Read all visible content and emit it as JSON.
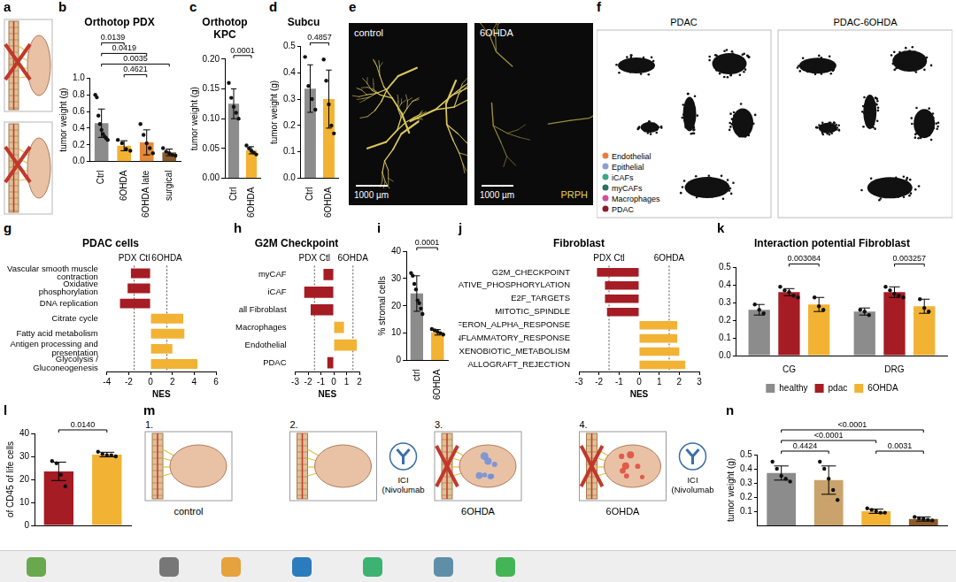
{
  "chart_data": [
    {
      "panel": "b",
      "type": "bar",
      "title": "Orthotop PDX",
      "y_label": "tumor weight (g)",
      "categories": [
        "Ctrl",
        "6OHDA",
        "6OHDA late",
        "surgical"
      ],
      "values": [
        0.46,
        0.19,
        0.23,
        0.11
      ],
      "errors": [
        0.17,
        0.06,
        0.15,
        0.04
      ],
      "points": [
        [
          0.8,
          0.77,
          0.55,
          0.45,
          0.38,
          0.33,
          0.3,
          0.28,
          0.26
        ],
        [
          0.26,
          0.22,
          0.15,
          0.13
        ],
        [
          0.45,
          0.32,
          0.22,
          0.16,
          0.1
        ],
        [
          0.16,
          0.12,
          0.1,
          0.08,
          0.07
        ]
      ],
      "colors": [
        "#8c8c8c",
        "#f2b233",
        "#e58a3a",
        "#8b5a2b"
      ],
      "ylim": [
        0,
        1
      ],
      "yticks": [
        {
          "value": 0,
          "label": "0.0"
        },
        0.2,
        0.4,
        0.6,
        0.8,
        {
          "value": 1,
          "label": "1.0"
        }
      ],
      "grid": false,
      "annotations": [
        {
          "text": "0.4621",
          "between": [
            "6OHDA",
            "6OHDA late"
          ]
        },
        {
          "text": "0.0035",
          "between": [
            "Ctrl",
            "surgical"
          ]
        },
        {
          "text": "0.0419",
          "between": [
            "Ctrl",
            "6OHDA late"
          ]
        },
        {
          "text": "0.0139",
          "between": [
            "Ctrl",
            "6OHDA"
          ]
        }
      ]
    },
    {
      "panel": "c",
      "type": "bar",
      "title": "Orthotop KPC",
      "y_label": "tumor weight (g)",
      "categories": [
        "Ctrl",
        "6OHDA"
      ],
      "values": [
        0.125,
        0.047
      ],
      "errors": [
        0.025,
        0.006
      ],
      "points": [
        [
          0.16,
          0.135,
          0.12,
          0.11,
          0.1
        ],
        [
          0.055,
          0.05,
          0.046,
          0.043,
          0.04
        ]
      ],
      "colors": [
        "#8c8c8c",
        "#f2b233"
      ],
      "ylim": [
        0,
        0.2
      ],
      "yticks": [
        {
          "value": 0,
          "label": "0.00"
        },
        0.05,
        {
          "value": 0.1,
          "label": "0.10"
        },
        0.15,
        {
          "value": 0.2,
          "label": "0.20"
        }
      ],
      "grid": false,
      "annotations": [
        {
          "text": "0.0001",
          "between": [
            "Ctrl",
            "6OHDA"
          ]
        }
      ]
    },
    {
      "panel": "d",
      "type": "bar",
      "title": "Subcu",
      "y_label": "tumor weight (g)",
      "categories": [
        "Ctrl",
        "6OHDA"
      ],
      "values": [
        0.34,
        0.3
      ],
      "errors": [
        0.09,
        0.11
      ],
      "points": [
        [
          0.46,
          0.35,
          0.3,
          0.26
        ],
        [
          0.45,
          0.37,
          0.28,
          0.2,
          0.17
        ]
      ],
      "colors": [
        "#8c8c8c",
        "#f2b233"
      ],
      "ylim": [
        0,
        0.5
      ],
      "yticks": [
        {
          "value": 0,
          "label": "0.0"
        },
        0.1,
        0.2,
        0.3,
        0.4,
        0.5
      ],
      "grid": false,
      "annotations": [
        {
          "text": "0.4857",
          "between": [
            "Ctrl",
            "6OHDA"
          ]
        }
      ]
    },
    {
      "panel": "g",
      "type": "bar",
      "orientation": "horizontal",
      "title": "PDAC cells",
      "x_label": "NES",
      "side_labels": [
        "PDX Ctl",
        "6OHDA"
      ],
      "ref_lines": [
        -1.5,
        1.5
      ],
      "categories": [
        "Vascular smooth muscle contraction",
        "Oxidative phosphorylation",
        "DNA replication",
        "Citrate cycle",
        "Fatty acid metabolism",
        "Antigen processing and presentation",
        "Glycolysis / Gluconeogenesis"
      ],
      "values": [
        -1.8,
        -2.1,
        -2.8,
        3.0,
        3.1,
        2.0,
        4.3
      ],
      "colors": [
        "#a51c24",
        "#a51c24",
        "#a51c24",
        "#f2b233",
        "#f2b233",
        "#f2b233",
        "#f2b233"
      ],
      "xlim": [
        -4,
        6
      ],
      "xticks": [
        -4,
        -2,
        0,
        2,
        4,
        6
      ],
      "grid": false
    },
    {
      "panel": "h",
      "type": "bar",
      "orientation": "horizontal",
      "title": "G2M Checkpoint",
      "x_label": "NES",
      "side_labels": [
        "PDX Ctl",
        "6OHDA"
      ],
      "ref_lines": [
        -1.5,
        1.5
      ],
      "categories": [
        "myCAF",
        "iCAF",
        "all Fibroblast",
        "Macrophages",
        "Endothelial",
        "PDAC"
      ],
      "values": [
        -0.8,
        -2.3,
        -1.8,
        0.8,
        1.8,
        -0.5
      ],
      "colors": [
        "#a51c24",
        "#a51c24",
        "#a51c24",
        "#f2b233",
        "#f2b233",
        "#a51c24"
      ],
      "xlim": [
        -3,
        2
      ],
      "xticks": [
        -3,
        -2,
        -1,
        0,
        1,
        2
      ],
      "grid": false
    },
    {
      "panel": "i",
      "type": "bar",
      "y_label": "% stromal cells",
      "categories": [
        "ctrl",
        "6OHDA"
      ],
      "values": [
        24.5,
        10.3
      ],
      "errors": [
        6.5,
        1.0
      ],
      "points": [
        [
          32,
          31,
          28,
          26,
          22,
          21,
          19,
          17
        ],
        [
          11.5,
          11,
          10.5,
          10,
          9.5
        ]
      ],
      "colors": [
        "#8c8c8c",
        "#f2b233"
      ],
      "ylim": [
        0,
        40
      ],
      "yticks": [
        0,
        10,
        20,
        30,
        40
      ],
      "grid": false,
      "annotations": [
        {
          "text": "0.0001",
          "between": [
            "ctrl",
            "6OHDA"
          ]
        }
      ]
    },
    {
      "panel": "j",
      "type": "bar",
      "orientation": "horizontal",
      "title": "Fibroblast",
      "x_label": "NES",
      "side_labels": [
        "PDX Ctl",
        "6OHDA"
      ],
      "ref_lines": [
        -1.5,
        1.5
      ],
      "categories": [
        "G2M_CHECKPOINT",
        "OXIDATIVE_PHOSPHORYLATION",
        "E2F_TARGETS",
        "MITOTIC_SPINDLE",
        "INTERFERON_ALPHA_RESPONSE",
        "INFLAMMATORY_RESPONSE",
        "XENOBIOTIC_METABOLISM",
        "ALLOGRAFT_REJECTION"
      ],
      "values": [
        -2.1,
        -1.7,
        -1.7,
        -1.6,
        1.9,
        1.9,
        2.0,
        2.3
      ],
      "colors": [
        "#a51c24",
        "#a51c24",
        "#a51c24",
        "#a51c24",
        "#f2b233",
        "#f2b233",
        "#f2b233",
        "#f2b233"
      ],
      "xlim": [
        -3,
        3
      ],
      "xticks": [
        -3,
        -2,
        -1,
        0,
        1,
        2,
        3
      ],
      "grid": false
    },
    {
      "panel": "k",
      "type": "bar",
      "title": "Interaction potential Fibroblast",
      "categories": [
        "CG",
        "DRG"
      ],
      "series": [
        {
          "name": "healthy",
          "color": "#8c8c8c",
          "values": [
            0.26,
            0.25
          ],
          "errors": [
            0.03,
            0.02
          ],
          "points": [
            [
              0.29,
              0.26,
              0.24
            ],
            [
              0.26,
              0.25,
              0.23
            ]
          ]
        },
        {
          "name": "pdac",
          "color": "#a51c24",
          "values": [
            0.36,
            0.36
          ],
          "errors": [
            0.02,
            0.03
          ],
          "points": [
            [
              0.39,
              0.37,
              0.36,
              0.34,
              0.33
            ],
            [
              0.39,
              0.37,
              0.35,
              0.34,
              0.33
            ]
          ]
        },
        {
          "name": "6OHDA",
          "color": "#f2b233",
          "values": [
            0.29,
            0.28
          ],
          "errors": [
            0.04,
            0.04
          ],
          "points": [
            [
              0.33,
              0.28,
              0.26
            ],
            [
              0.32,
              0.27,
              0.25
            ]
          ]
        }
      ],
      "ylim": [
        0,
        0.5
      ],
      "yticks": [
        {
          "value": 0,
          "label": "0.0"
        },
        0.1,
        0.2,
        0.3,
        0.4,
        0.5
      ],
      "grid": false,
      "legend": "bottom",
      "annotations": [
        {
          "text": "0.003084",
          "category": "CG",
          "between": [
            "pdac",
            "6OHDA"
          ]
        },
        {
          "text": "0.003257",
          "category": "DRG",
          "between": [
            "pdac",
            "6OHDA"
          ]
        }
      ]
    },
    {
      "panel": "l",
      "type": "bar",
      "y_label": "of CD45 of life cells",
      "categories": [
        null,
        null
      ],
      "values": [
        23.5,
        30.8
      ],
      "errors": [
        4,
        1
      ],
      "points": [
        [
          28,
          27,
          22,
          17
        ],
        [
          32,
          31,
          30.5,
          30.5,
          30
        ]
      ],
      "colors": [
        "#a51c24",
        "#f2b233"
      ],
      "ylim": [
        0,
        40
      ],
      "yticks": [
        0,
        10,
        20,
        30,
        40
      ],
      "grid": false,
      "annotations": [
        {
          "text": "0.0140",
          "between": [
            0,
            1
          ]
        }
      ]
    },
    {
      "panel": "n",
      "type": "bar",
      "y_label": "tumor weight (g)",
      "categories": [
        null,
        null,
        null,
        null
      ],
      "values": [
        0.37,
        0.32,
        0.1,
        0.045
      ],
      "errors": [
        0.05,
        0.1,
        0.015,
        0.015
      ],
      "points": [
        [
          0.45,
          0.4,
          0.35,
          0.33,
          0.31
        ],
        [
          0.45,
          0.4,
          0.33,
          0.25,
          0.18
        ],
        [
          0.12,
          0.11,
          0.1,
          0.09,
          0.09
        ],
        [
          0.06,
          0.05,
          0.045,
          0.04,
          0.035
        ]
      ],
      "colors": [
        "#8c8c8c",
        "#c9a36b",
        "#f2b233",
        "#8b5a2b"
      ],
      "ylim": [
        0,
        0.5
      ],
      "yticks": [
        0.1,
        0.2,
        0.3,
        0.4,
        0.5
      ],
      "grid": false,
      "annotations": [
        {
          "text": "0.0031",
          "between": [
            2,
            3
          ]
        },
        {
          "text": "0.4424",
          "between": [
            0,
            1
          ]
        },
        {
          "text": "<0.0001",
          "between": [
            0,
            2
          ]
        },
        {
          "text": "<0.0001",
          "between": [
            0,
            3
          ]
        }
      ]
    }
  ],
  "illustrations": [
    {
      "panel": "a"
    },
    {
      "panel": "e",
      "images": [
        {
          "label": "control",
          "scale_bar": "1000 µm"
        },
        {
          "label": "6OHDA",
          "scale_bar": "1000 µm",
          "stain": "PRPH"
        }
      ]
    },
    {
      "panel": "f",
      "titles": [
        "PDAC",
        "PDAC-6OHDA"
      ],
      "cell_types": [
        {
          "name": "Endothelial",
          "color": "#e8803a"
        },
        {
          "name": "Epithelial",
          "color": "#8c9fd0"
        },
        {
          "name": "iCAFs",
          "color": "#3aa889"
        },
        {
          "name": "myCAFs",
          "color": "#2e6f5e"
        },
        {
          "name": "Macrophages",
          "color": "#d14f9a"
        },
        {
          "name": "PDAC",
          "color": "#8b1a2b"
        }
      ]
    },
    {
      "panel": "m",
      "steps": [
        {
          "number": "1.",
          "label": "control"
        },
        {
          "number": "2.",
          "treatment": "ICI (Nivolumab"
        },
        {
          "number": "3.",
          "label": "6OHDA"
        },
        {
          "number": "4.",
          "label": "6OHDA",
          "treatment": "ICI (Nivolumab"
        }
      ]
    }
  ]
}
